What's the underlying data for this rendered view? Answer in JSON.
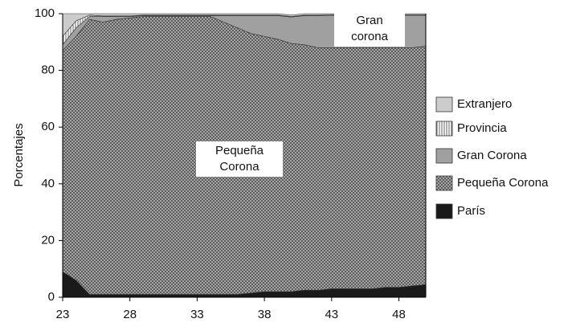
{
  "chart_data": {
    "type": "stacked-area",
    "y_label": "Porcentajes",
    "x": [
      23,
      24,
      25,
      26,
      27,
      28,
      29,
      30,
      31,
      32,
      33,
      34,
      35,
      36,
      37,
      38,
      39,
      40,
      41,
      42,
      43,
      44,
      45,
      46,
      47,
      48,
      49,
      50
    ],
    "xlim": [
      23,
      50
    ],
    "xticks": [
      23,
      28,
      33,
      38,
      43,
      48
    ],
    "ylim": [
      0,
      100
    ],
    "yticks": [
      0,
      20,
      40,
      60,
      80,
      100
    ],
    "series": [
      {
        "name": "París",
        "color": "#1a1a1a",
        "pattern": "solid",
        "values": [
          9,
          6,
          1,
          1,
          1,
          1,
          1,
          1,
          1,
          1,
          1,
          1,
          1,
          1,
          1.5,
          2,
          2,
          2,
          2.5,
          2.5,
          3,
          3,
          3,
          3,
          3.5,
          3.5,
          4,
          4.5
        ]
      },
      {
        "name": "Pequeña Corona",
        "color": "#7a7a7a",
        "pattern": "crosshatch",
        "values": [
          78,
          86,
          97,
          96,
          97,
          97.5,
          98,
          98,
          98,
          98,
          98,
          98,
          96,
          94,
          91.5,
          90,
          89,
          87.5,
          86.5,
          85.5,
          85,
          85,
          85,
          85,
          84.5,
          84.5,
          84,
          84
        ]
      },
      {
        "name": "Gran Corona",
        "color": "#a0a0a0",
        "pattern": "solid",
        "values": [
          2,
          3,
          1,
          2,
          1,
          0.5,
          0.3,
          0.3,
          0.3,
          0.3,
          0.3,
          0.3,
          2.3,
          4.3,
          6.3,
          7.3,
          8.3,
          9.3,
          10.3,
          11.3,
          11.4,
          11.4,
          11.4,
          11.4,
          11.4,
          11.4,
          11.4,
          10.9
        ]
      },
      {
        "name": "Provincia",
        "color": "#888888",
        "pattern": "vertical",
        "values": [
          3,
          2.5,
          0.5,
          0.2,
          0.2,
          0.2,
          0.2,
          0.2,
          0.2,
          0.2,
          0.2,
          0.2,
          0.2,
          0.2,
          0.2,
          0.2,
          0.2,
          0.2,
          0.2,
          0.2,
          0.2,
          0.2,
          0.2,
          0.2,
          0.2,
          0.2,
          0.2,
          0.2
        ]
      },
      {
        "name": "Extranjero",
        "color": "#cccccc",
        "pattern": "solid",
        "values": [
          8,
          2.5,
          0.5,
          0.8,
          0.8,
          0.8,
          0.5,
          0.5,
          0.5,
          0.5,
          0.5,
          0.5,
          0.5,
          0.5,
          0.5,
          0.5,
          0.5,
          0.5,
          0.5,
          0.5,
          0.4,
          0.4,
          0.4,
          0.4,
          0.4,
          0.4,
          0.4,
          0.4
        ]
      }
    ],
    "legend_order": "reversed",
    "annotations": [
      {
        "lines": [
          "Gran",
          "corona"
        ]
      },
      {
        "lines": [
          "Pequeña",
          "Corona"
        ]
      }
    ]
  }
}
